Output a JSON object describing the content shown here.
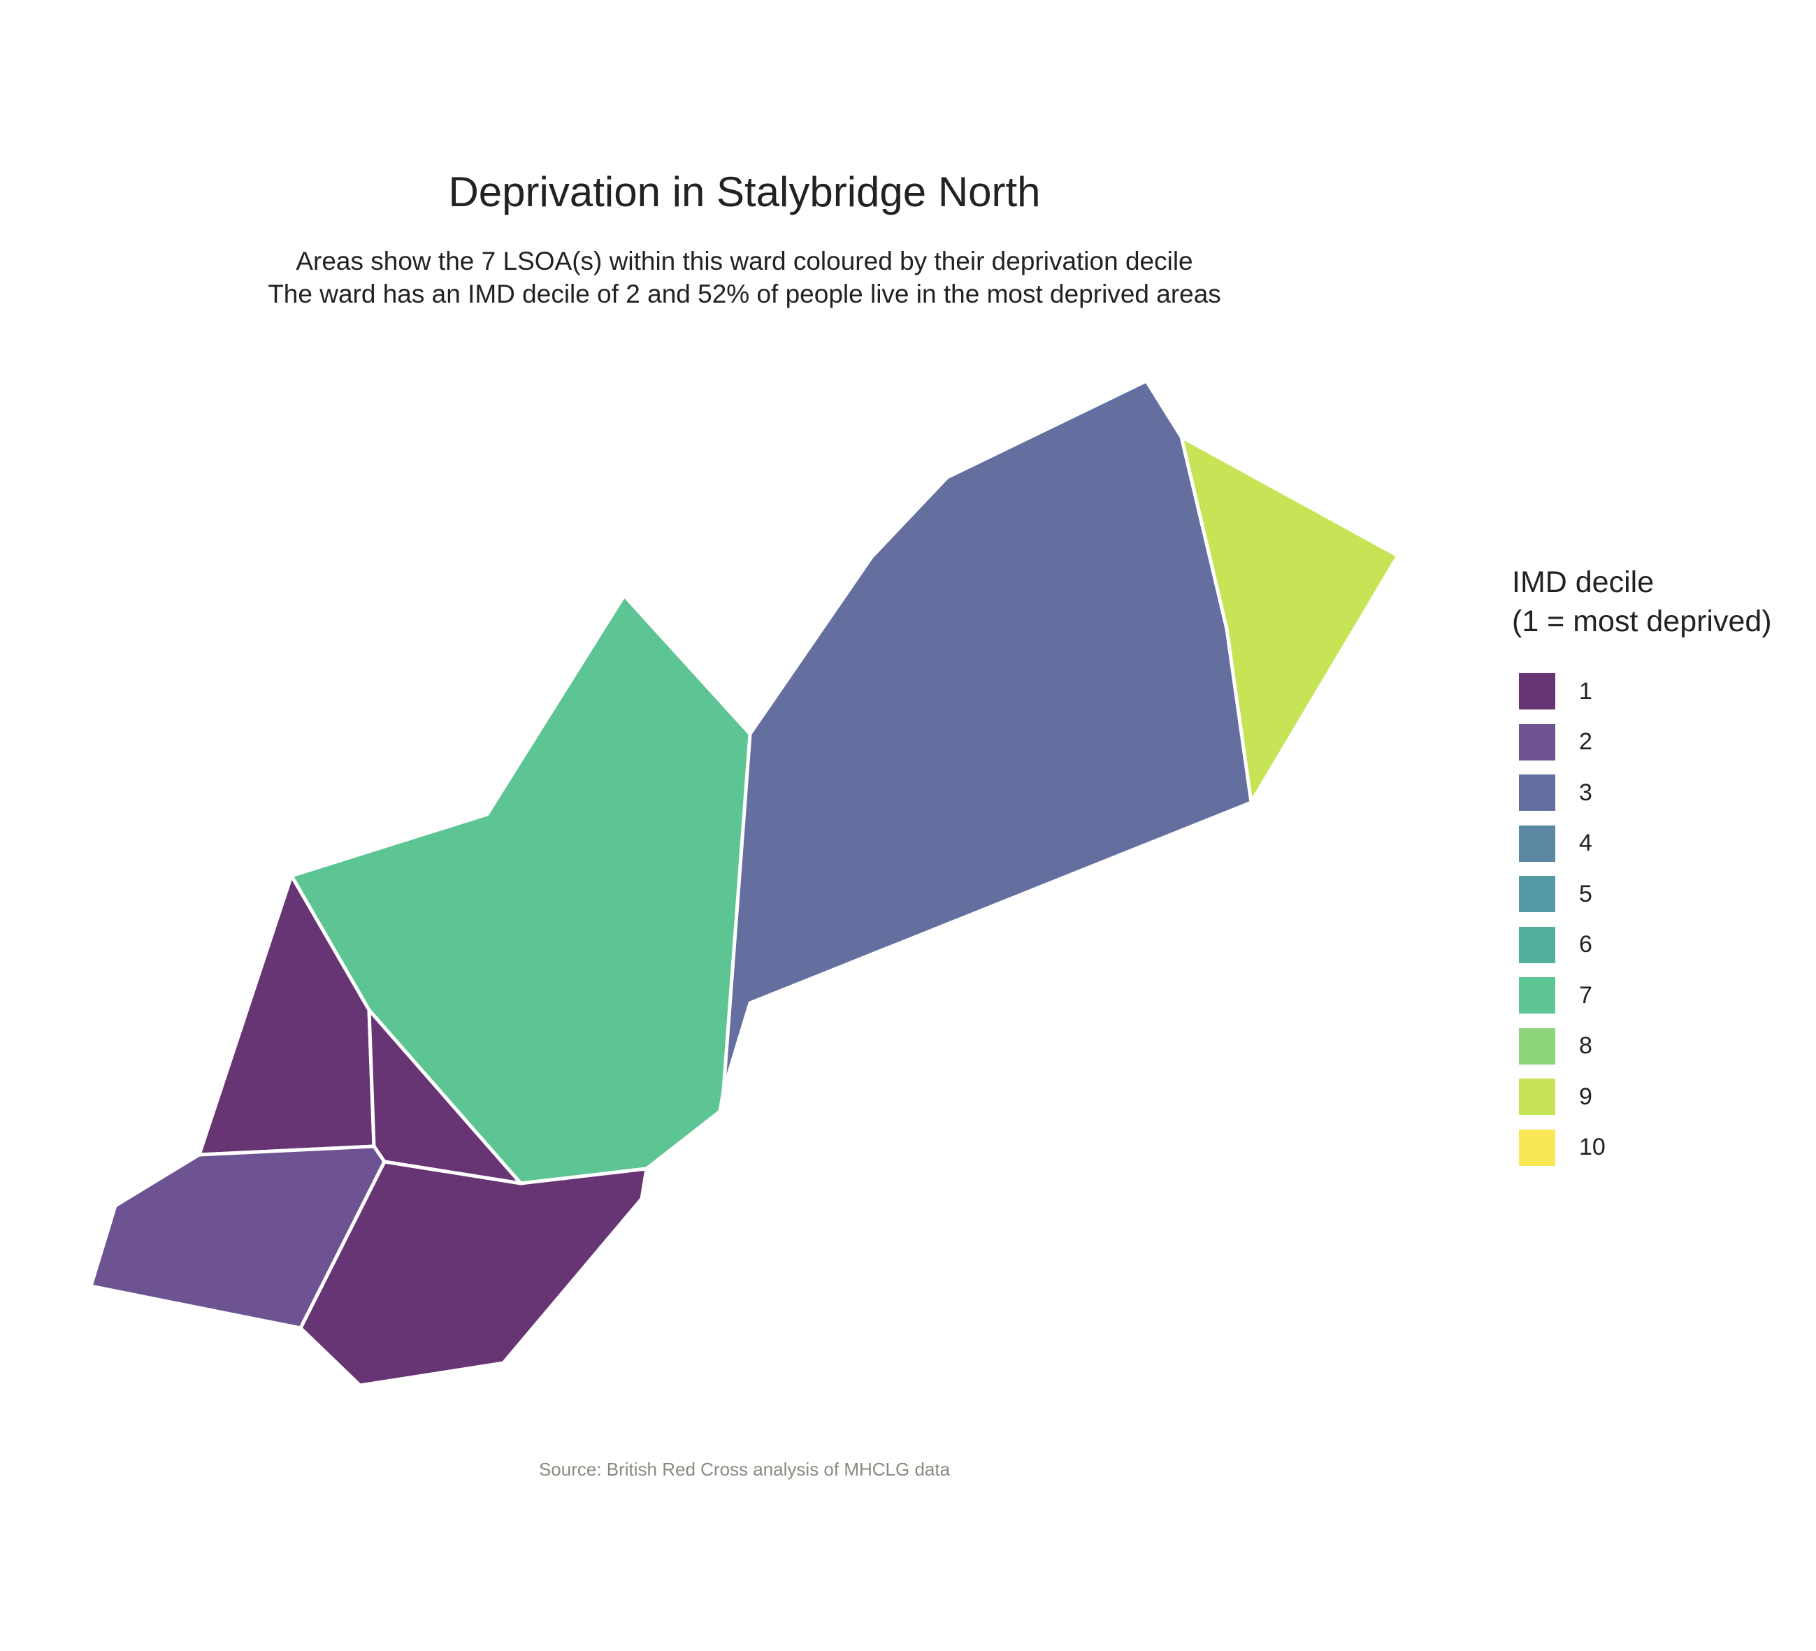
{
  "title": "Deprivation in Stalybridge North",
  "subtitle_line1": "Areas show the 7 LSOA(s) within this ward coloured by their deprivation decile",
  "subtitle_line2": "The ward has an IMD decile of 2 and 52% of people live in the most deprived areas",
  "legend": {
    "title_line1": "IMD decile",
    "title_line2": "(1 = most deprived)",
    "items": [
      {
        "label": "1",
        "color": "#673574"
      },
      {
        "label": "2",
        "color": "#6d5391"
      },
      {
        "label": "3",
        "color": "#646e9f"
      },
      {
        "label": "4",
        "color": "#5b87a3"
      },
      {
        "label": "5",
        "color": "#539ca5"
      },
      {
        "label": "6",
        "color": "#51b09d"
      },
      {
        "label": "7",
        "color": "#5dc594"
      },
      {
        "label": "8",
        "color": "#8dd57a"
      },
      {
        "label": "9",
        "color": "#c6e456"
      },
      {
        "label": "10",
        "color": "#f9e753"
      }
    ]
  },
  "areas": [
    {
      "id": "lsoa-north-east",
      "decile": 9
    },
    {
      "id": "lsoa-north-central",
      "decile": 3
    },
    {
      "id": "lsoa-central",
      "decile": 7
    },
    {
      "id": "lsoa-west-upper",
      "decile": 1
    },
    {
      "id": "lsoa-west-inner",
      "decile": 1
    },
    {
      "id": "lsoa-south-west",
      "decile": 2
    },
    {
      "id": "lsoa-south",
      "decile": 1
    }
  ],
  "source": "Source: British Red Cross analysis of MHCLG data"
}
